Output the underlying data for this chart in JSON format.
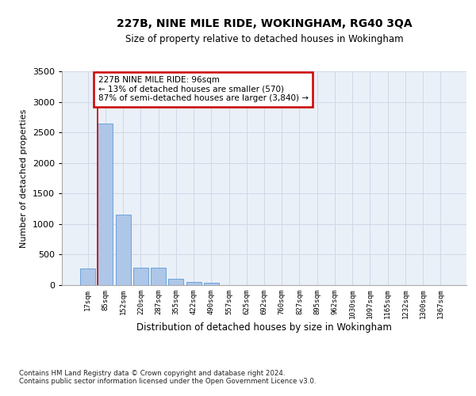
{
  "title": "227B, NINE MILE RIDE, WOKINGHAM, RG40 3QA",
  "subtitle": "Size of property relative to detached houses in Wokingham",
  "xlabel": "Distribution of detached houses by size in Wokingham",
  "ylabel": "Number of detached properties",
  "bin_labels": [
    "17sqm",
    "85sqm",
    "152sqm",
    "220sqm",
    "287sqm",
    "355sqm",
    "422sqm",
    "490sqm",
    "557sqm",
    "625sqm",
    "692sqm",
    "760sqm",
    "827sqm",
    "895sqm",
    "962sqm",
    "1030sqm",
    "1097sqm",
    "1165sqm",
    "1232sqm",
    "1300sqm",
    "1367sqm"
  ],
  "bar_heights": [
    270,
    2640,
    1150,
    285,
    285,
    100,
    55,
    40,
    0,
    0,
    0,
    0,
    0,
    0,
    0,
    0,
    0,
    0,
    0,
    0,
    0
  ],
  "bar_color": "#aec6e8",
  "bar_edge_color": "#5b9bd5",
  "ylim": [
    0,
    3500
  ],
  "yticks": [
    0,
    500,
    1000,
    1500,
    2000,
    2500,
    3000,
    3500
  ],
  "annotation_text": "227B NINE MILE RIDE: 96sqm\n← 13% of detached houses are smaller (570)\n87% of semi-detached houses are larger (3,840) →",
  "annotation_box_color": "#ffffff",
  "annotation_box_edge": "#cc0000",
  "vline_color": "#cc0000",
  "grid_color": "#d0d8e8",
  "background_color": "#eaf0f8",
  "footnote1": "Contains HM Land Registry data © Crown copyright and database right 2024.",
  "footnote2": "Contains public sector information licensed under the Open Government Licence v3.0."
}
